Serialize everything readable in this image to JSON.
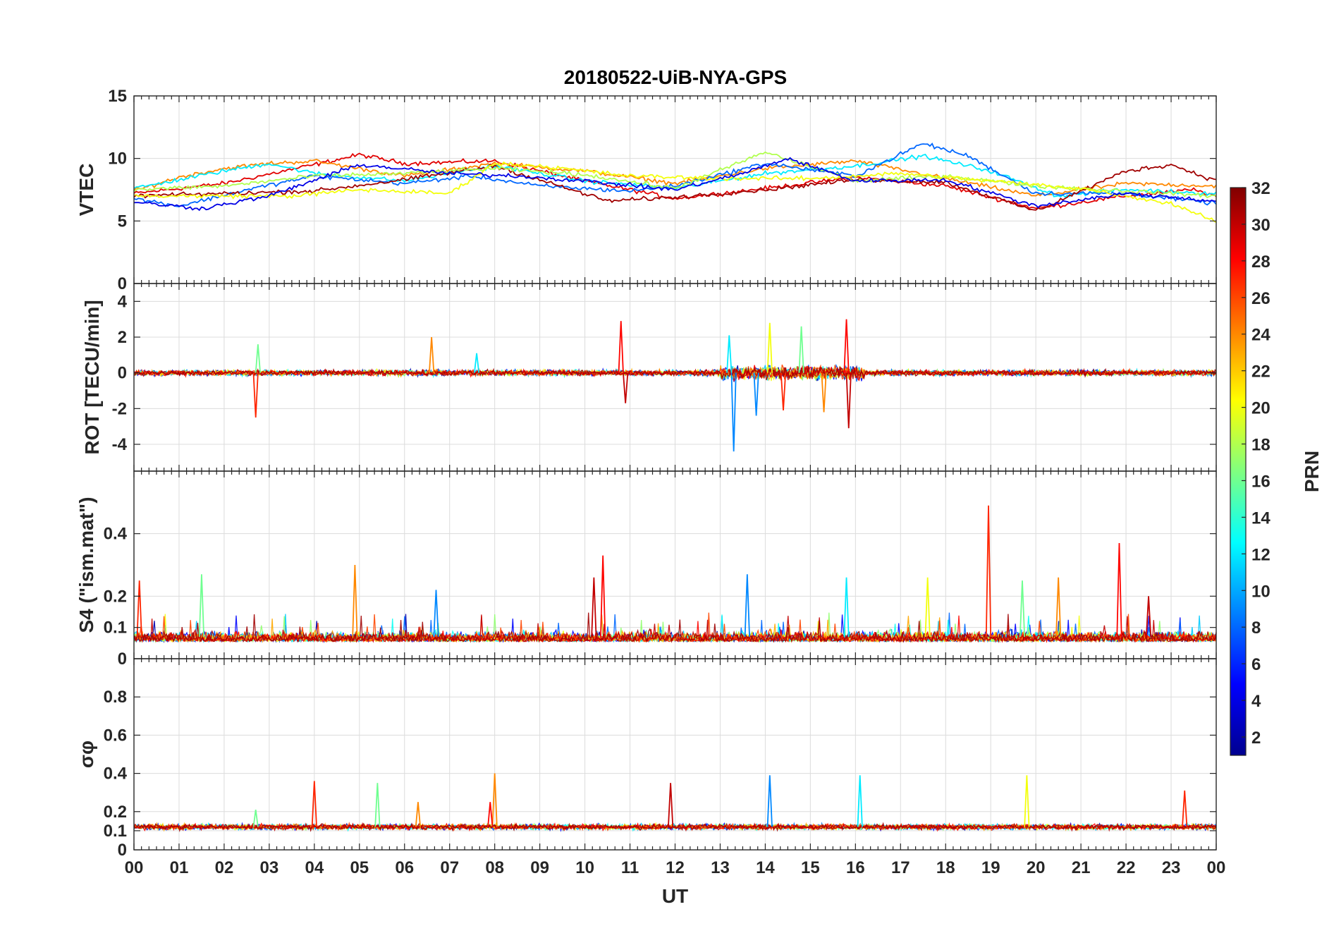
{
  "title": "20180522-UiB-NYA-GPS",
  "chart_data": [
    {
      "type": "line",
      "panel": "vtec",
      "ylabel": "VTEC",
      "ylim": [
        0,
        15
      ],
      "yticks": [
        0,
        5,
        10,
        15
      ],
      "yticklabels": [
        "0",
        "5",
        "10",
        "15"
      ],
      "baseline": 8.2,
      "spread": 1.3,
      "series": [
        {
          "prn": 29,
          "x": [
            0,
            2,
            4,
            5,
            6,
            8,
            10,
            12,
            14,
            16,
            18,
            20,
            22,
            23.5,
            24
          ],
          "y": [
            7.2,
            8,
            9.5,
            10.3,
            9.6,
            9.8,
            8.2,
            6.8,
            7.6,
            8.5,
            7.8,
            6,
            7,
            7.5,
            7
          ]
        },
        {
          "prn": 24,
          "x": [
            0,
            1,
            2,
            3,
            4,
            6,
            8,
            10,
            12,
            14,
            16,
            18,
            20,
            22,
            24
          ],
          "y": [
            7.4,
            8.5,
            9.2,
            9.6,
            9.8,
            8.6,
            9.6,
            9,
            8,
            9.2,
            9.8,
            8.4,
            7,
            8,
            7.8
          ]
        },
        {
          "prn": 12,
          "x": [
            0,
            2,
            3,
            4,
            6,
            8,
            10,
            12,
            14,
            16,
            17.5,
            19,
            20.5,
            22,
            24
          ],
          "y": [
            7.6,
            9,
            9.6,
            8.8,
            8.2,
            9.4,
            8.2,
            7.6,
            8.8,
            9.4,
            10.2,
            9,
            7,
            7.5,
            7.2
          ]
        },
        {
          "prn": 8,
          "x": [
            0,
            1,
            2.5,
            4,
            6,
            7.5,
            9,
            11,
            12,
            14,
            16,
            17.5,
            18.5,
            20,
            22,
            24
          ],
          "y": [
            6.8,
            6.2,
            7.5,
            8.6,
            8,
            8.6,
            7.8,
            7.4,
            7.8,
            9.6,
            8.6,
            11.2,
            10.2,
            7.2,
            7.2,
            6.4
          ]
        },
        {
          "prn": 31,
          "x": [
            0,
            2,
            4,
            6,
            8,
            10.5,
            12,
            14,
            16,
            18,
            20,
            22,
            23,
            24
          ],
          "y": [
            7,
            7.2,
            7.4,
            8.3,
            9.4,
            6.6,
            6.9,
            7.5,
            8.3,
            8.1,
            5.8,
            9,
            9.5,
            8.2
          ]
        },
        {
          "prn": 18,
          "x": [
            0,
            2,
            4,
            6,
            8,
            10,
            12,
            14,
            16,
            18,
            20,
            22,
            24
          ],
          "y": [
            7.5,
            7.8,
            8.6,
            8.8,
            9.2,
            8.7,
            7.6,
            10.5,
            8.2,
            8.6,
            7.8,
            7.4,
            7
          ]
        },
        {
          "prn": 20,
          "x": [
            3.5,
            5,
            7,
            8,
            9,
            11,
            13,
            15,
            17,
            19,
            21,
            23,
            24
          ],
          "y": [
            7,
            7.5,
            7.2,
            9.6,
            9.4,
            8.6,
            8.4,
            8.4,
            8.8,
            8.2,
            7.6,
            6.4,
            5
          ]
        },
        {
          "prn": 4,
          "x": [
            0,
            1.5,
            3,
            5,
            7,
            8.5,
            10,
            12,
            13.5,
            14.5,
            16,
            18,
            20,
            22,
            24
          ],
          "y": [
            6.5,
            6,
            7,
            9.5,
            8.8,
            8.6,
            8.2,
            7.5,
            8.8,
            10,
            8.2,
            8.3,
            6.2,
            7.2,
            6.6
          ]
        }
      ]
    },
    {
      "type": "line",
      "panel": "rot",
      "ylabel": "ROT [TECU/min]",
      "ylim": [
        -5.5,
        5
      ],
      "yticks": [
        -4,
        -2,
        0,
        2,
        4
      ],
      "yticklabels": [
        "-4",
        "-2",
        "0",
        "2",
        "4"
      ],
      "baseline": 0,
      "spread": 0.22,
      "spikes": [
        {
          "x": 2.7,
          "y": -2.5
        },
        {
          "x": 2.75,
          "y": 1.6
        },
        {
          "x": 6.6,
          "y": 2
        },
        {
          "x": 10.8,
          "y": 2.9
        },
        {
          "x": 10.9,
          "y": -1.7
        },
        {
          "x": 13.3,
          "y": -4.4
        },
        {
          "x": 13.2,
          "y": 2.1
        },
        {
          "x": 14.1,
          "y": 2.8
        },
        {
          "x": 14.4,
          "y": -2.1
        },
        {
          "x": 14.8,
          "y": 2.6
        },
        {
          "x": 15.3,
          "y": -2.2
        },
        {
          "x": 15.8,
          "y": 3
        },
        {
          "x": 15.85,
          "y": -3.1
        },
        {
          "x": 13.8,
          "y": -2.4
        },
        {
          "x": 7.6,
          "y": 1.1
        }
      ]
    },
    {
      "type": "line",
      "panel": "s4",
      "ylabel": "S4 (\"ism.mat\")",
      "ylim": [
        0,
        0.6
      ],
      "yticks": [
        0,
        0.1,
        0.2,
        0.4
      ],
      "yticklabels": [
        "0",
        "0.1",
        "0.2",
        "0.4"
      ],
      "baseline": 0.07,
      "spread": 0.025,
      "spikes": [
        {
          "x": 0.12,
          "y": 0.25
        },
        {
          "x": 1.5,
          "y": 0.27
        },
        {
          "x": 4.9,
          "y": 0.3
        },
        {
          "x": 10.4,
          "y": 0.33
        },
        {
          "x": 10.2,
          "y": 0.26
        },
        {
          "x": 13.6,
          "y": 0.27
        },
        {
          "x": 15.8,
          "y": 0.26
        },
        {
          "x": 17.6,
          "y": 0.26
        },
        {
          "x": 18.95,
          "y": 0.49
        },
        {
          "x": 19.7,
          "y": 0.25
        },
        {
          "x": 20.5,
          "y": 0.26
        },
        {
          "x": 21.85,
          "y": 0.37
        },
        {
          "x": 22.5,
          "y": 0.2
        },
        {
          "x": 6.7,
          "y": 0.22
        }
      ]
    },
    {
      "type": "line",
      "panel": "sigma-phi",
      "ylabel": "σφ",
      "ylim": [
        0,
        1
      ],
      "yticks": [
        0,
        0.1,
        0.2,
        0.4,
        0.6,
        0.8
      ],
      "yticklabels": [
        "0",
        "0.1",
        "0.2",
        "0.4",
        "0.6",
        "0.8"
      ],
      "baseline": 0.12,
      "spread": 0.02,
      "spikes": [
        {
          "x": 4.0,
          "y": 0.36
        },
        {
          "x": 5.4,
          "y": 0.35
        },
        {
          "x": 8.0,
          "y": 0.4
        },
        {
          "x": 7.9,
          "y": 0.25
        },
        {
          "x": 11.9,
          "y": 0.35
        },
        {
          "x": 14.1,
          "y": 0.39
        },
        {
          "x": 16.1,
          "y": 0.39
        },
        {
          "x": 19.8,
          "y": 0.39
        },
        {
          "x": 23.3,
          "y": 0.31
        },
        {
          "x": 2.7,
          "y": 0.21
        },
        {
          "x": 6.3,
          "y": 0.25
        }
      ]
    }
  ],
  "x_axis": {
    "label": "UT",
    "xlim": [
      0,
      24
    ],
    "ticks": [
      "00",
      "01",
      "02",
      "03",
      "04",
      "05",
      "06",
      "07",
      "08",
      "09",
      "10",
      "11",
      "12",
      "13",
      "14",
      "15",
      "16",
      "17",
      "18",
      "19",
      "20",
      "21",
      "22",
      "23",
      "00"
    ]
  },
  "colorbar": {
    "label": "PRN",
    "range": [
      1,
      32
    ],
    "ticks": [
      "2",
      "4",
      "6",
      "8",
      "10",
      "12",
      "14",
      "16",
      "18",
      "20",
      "22",
      "24",
      "26",
      "28",
      "30",
      "32"
    ],
    "colormap": [
      "#00008f",
      "#0000ff",
      "#0080ff",
      "#00ffff",
      "#80ff80",
      "#ffff00",
      "#ff8000",
      "#ff0000",
      "#800000"
    ]
  }
}
